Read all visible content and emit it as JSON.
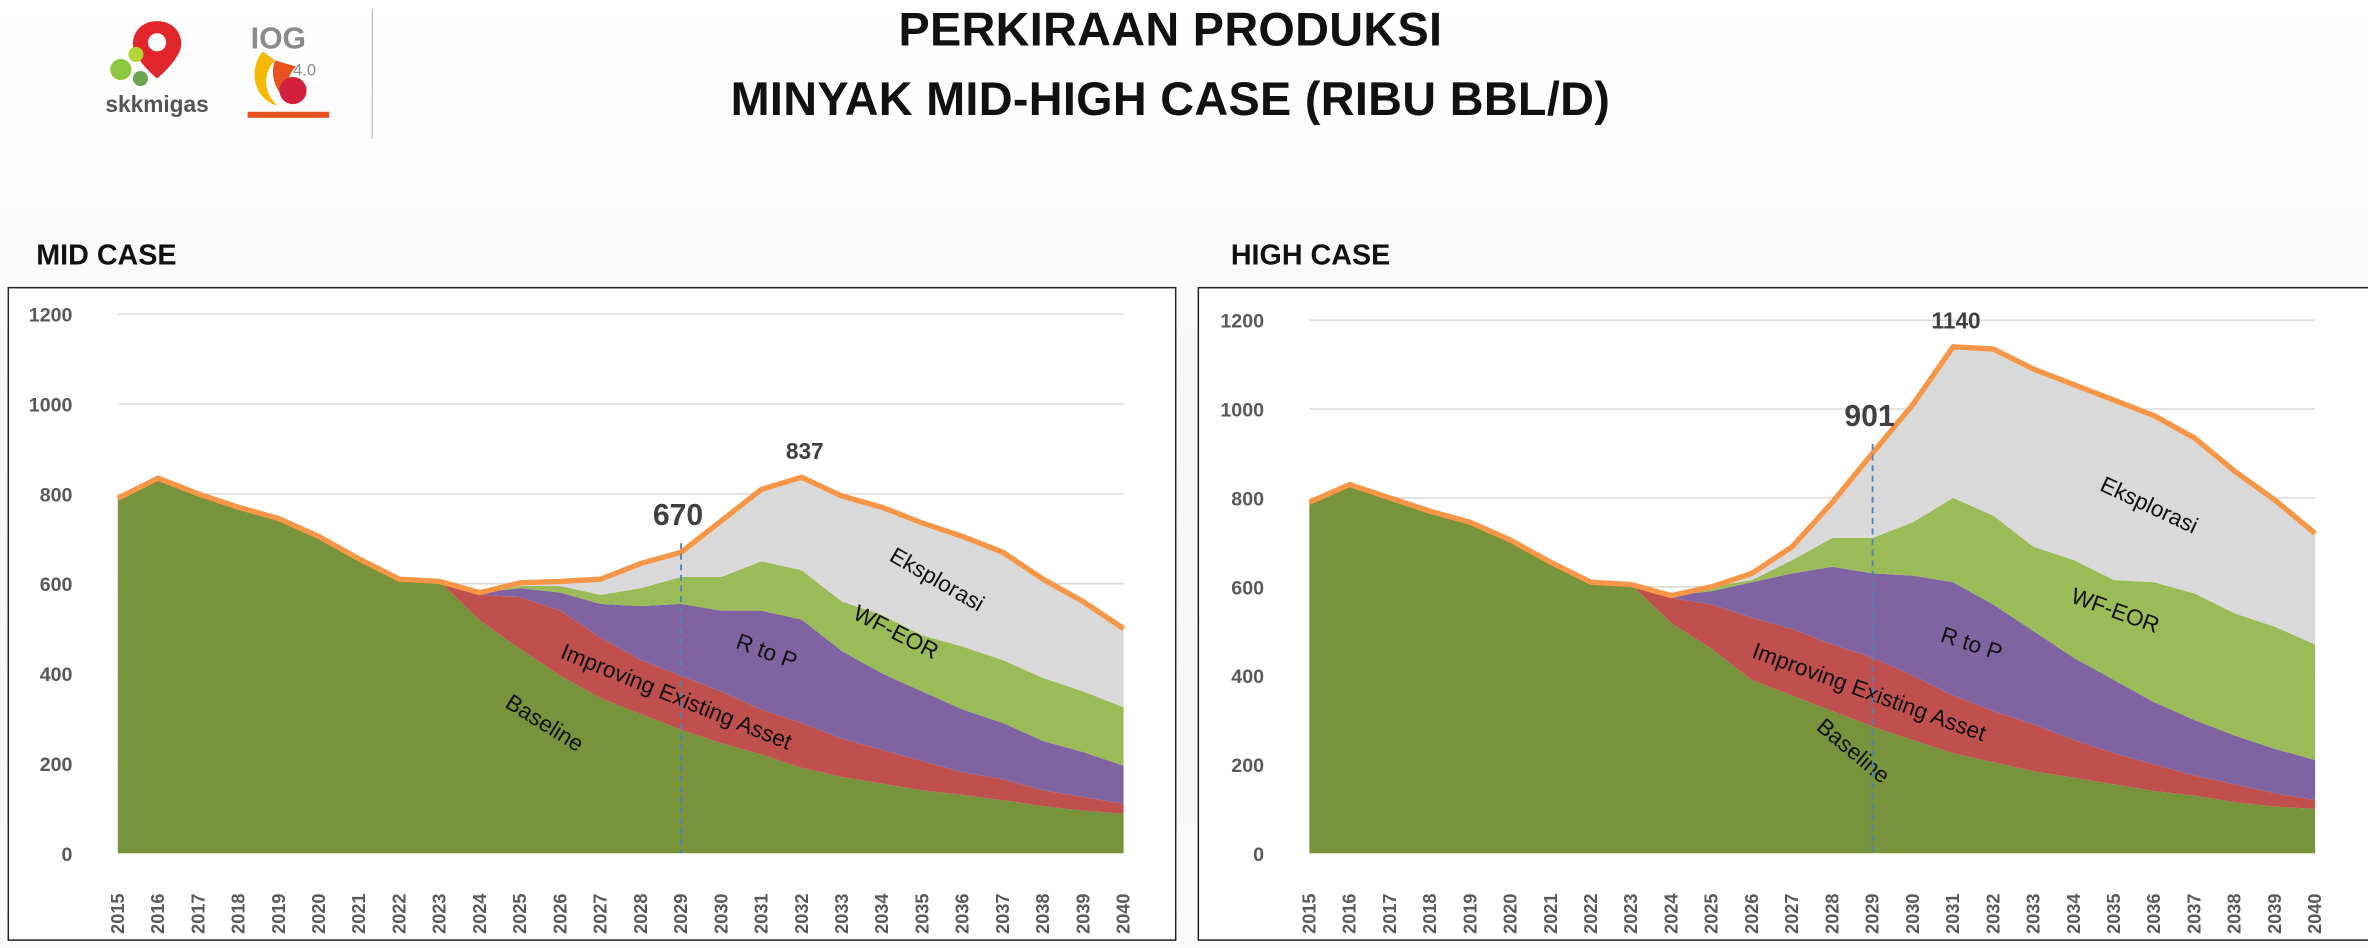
{
  "header": {
    "title_line1": "PERKIRAAN PRODUKSI",
    "title_line2": "MINYAK MID-HIGH CASE (RIBU BBL/D)",
    "logo_left_text": "skkmigas",
    "logo_right_text": "IOG 4.0"
  },
  "colors": {
    "Baseline": "#77933c",
    "Improving Existing Asset": "#c0504d",
    "R to P": "#8064a2",
    "WF-EOR": "#9bbb59",
    "Eksplorasi": "#d9d9d9",
    "total_line": "#f79646",
    "marker_line": "#4f81bd"
  },
  "chart_data": [
    {
      "type": "area",
      "title": "MID CASE",
      "xlabel": "",
      "ylabel": "",
      "ylim": [
        0,
        1200
      ],
      "yticks": [
        "0",
        "200",
        "400",
        "600",
        "800",
        "1000",
        "1200"
      ],
      "grid": true,
      "categories": [
        "2015",
        "2016",
        "2017",
        "2018",
        "2019",
        "2020",
        "2021",
        "2022",
        "2023",
        "2024",
        "2025",
        "2026",
        "2027",
        "2028",
        "2029",
        "2030",
        "2031",
        "2032",
        "2033",
        "2034",
        "2035",
        "2036",
        "2037",
        "2038",
        "2039",
        "2040"
      ],
      "series": [
        {
          "name": "Baseline",
          "values": [
            790,
            835,
            800,
            770,
            745,
            705,
            655,
            610,
            605,
            518,
            455,
            395,
            345,
            310,
            275,
            245,
            220,
            190,
            170,
            155,
            140,
            130,
            118,
            105,
            95,
            88
          ]
        },
        {
          "name": "Improving Existing Asset",
          "values": [
            0,
            0,
            0,
            0,
            0,
            0,
            0,
            0,
            0,
            57,
            115,
            145,
            135,
            120,
            120,
            115,
            100,
            100,
            85,
            75,
            65,
            50,
            47,
            35,
            30,
            22
          ]
        },
        {
          "name": "R to P",
          "values": [
            0,
            0,
            0,
            0,
            0,
            0,
            0,
            0,
            0,
            5,
            20,
            40,
            75,
            120,
            160,
            180,
            220,
            230,
            195,
            170,
            155,
            140,
            125,
            110,
            100,
            85
          ]
        },
        {
          "name": "WF-EOR",
          "values": [
            0,
            0,
            0,
            0,
            0,
            0,
            0,
            0,
            0,
            0,
            5,
            15,
            20,
            40,
            60,
            75,
            110,
            110,
            110,
            130,
            125,
            140,
            140,
            140,
            135,
            130
          ]
        },
        {
          "name": "Eksplorasi",
          "values": [
            0,
            0,
            0,
            0,
            0,
            0,
            0,
            0,
            0,
            0,
            7,
            10,
            35,
            55,
            55,
            125,
            160,
            207,
            235,
            240,
            250,
            245,
            240,
            220,
            200,
            175
          ]
        }
      ],
      "total": [
        790,
        835,
        800,
        770,
        745,
        705,
        655,
        610,
        605,
        580,
        602,
        605,
        610,
        645,
        670,
        740,
        810,
        837,
        795,
        770,
        735,
        705,
        670,
        610,
        560,
        500
      ],
      "annotations": [
        {
          "text": "670",
          "x": "2029",
          "y": 670,
          "dashed_marker": true
        },
        {
          "text": "837",
          "x": "2032",
          "y": 837,
          "dashed_marker": false
        }
      ]
    },
    {
      "type": "area",
      "title": "HIGH CASE",
      "xlabel": "",
      "ylabel": "",
      "ylim": [
        0,
        1200
      ],
      "yticks": [
        "0",
        "200",
        "400",
        "600",
        "800",
        "1000",
        "1200"
      ],
      "grid": true,
      "categories": [
        "2015",
        "2016",
        "2017",
        "2018",
        "2019",
        "2020",
        "2021",
        "2022",
        "2023",
        "2024",
        "2025",
        "2026",
        "2027",
        "2028",
        "2029",
        "2030",
        "2031",
        "2032",
        "2033",
        "2034",
        "2035",
        "2036",
        "2037",
        "2038",
        "2039",
        "2040"
      ],
      "series": [
        {
          "name": "Baseline",
          "values": [
            790,
            830,
            800,
            770,
            745,
            705,
            655,
            610,
            605,
            518,
            460,
            390,
            355,
            320,
            285,
            255,
            225,
            205,
            185,
            170,
            155,
            140,
            130,
            115,
            105,
            100
          ]
        },
        {
          "name": "Improving Existing Asset",
          "values": [
            0,
            0,
            0,
            0,
            0,
            0,
            0,
            0,
            0,
            57,
            100,
            140,
            150,
            150,
            155,
            145,
            130,
            115,
            105,
            85,
            70,
            60,
            45,
            40,
            30,
            20
          ]
        },
        {
          "name": "R to P",
          "values": [
            0,
            0,
            0,
            0,
            0,
            0,
            0,
            0,
            0,
            5,
            30,
            80,
            125,
            175,
            190,
            225,
            255,
            240,
            210,
            185,
            165,
            140,
            125,
            110,
            100,
            90
          ]
        },
        {
          "name": "WF-EOR",
          "values": [
            0,
            0,
            0,
            0,
            0,
            0,
            0,
            0,
            0,
            0,
            10,
            5,
            30,
            65,
            80,
            120,
            190,
            200,
            190,
            220,
            225,
            270,
            285,
            275,
            275,
            260
          ]
        },
        {
          "name": "Eksplorasi",
          "values": [
            0,
            0,
            0,
            0,
            0,
            0,
            0,
            0,
            0,
            0,
            0,
            15,
            30,
            80,
            191,
            265,
            340,
            375,
            400,
            395,
            405,
            375,
            350,
            320,
            285,
            250
          ]
        }
      ],
      "total": [
        790,
        830,
        800,
        770,
        745,
        705,
        655,
        610,
        605,
        580,
        600,
        630,
        690,
        790,
        901,
        1010,
        1140,
        1135,
        1090,
        1055,
        1020,
        985,
        935,
        860,
        795,
        720
      ],
      "annotations": [
        {
          "text": "901",
          "x": "2029",
          "y": 901,
          "dashed_marker": true
        },
        {
          "text": "1140",
          "x": "2031",
          "y": 1140,
          "dashed_marker": false
        }
      ]
    }
  ]
}
